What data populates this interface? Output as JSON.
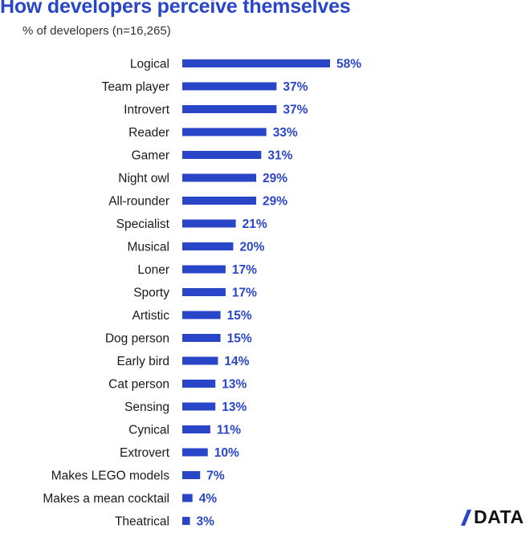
{
  "chart_data": {
    "type": "bar",
    "orientation": "horizontal",
    "title": "How developers perceive themselves",
    "subtitle": "% of developers (n=16,265)",
    "xlabel": "",
    "ylabel": "",
    "xlim": [
      0,
      58
    ],
    "categories": [
      "Logical",
      "Team player",
      "Introvert",
      "Reader",
      "Gamer",
      "Night owl",
      "All-rounder",
      "Specialist",
      "Musical",
      "Loner",
      "Sporty",
      "Artistic",
      "Dog person",
      "Early bird",
      "Cat person",
      "Sensing",
      "Cynical",
      "Extrovert",
      "Makes LEGO models",
      "Makes a mean cocktail",
      "Theatrical"
    ],
    "values": [
      58,
      37,
      37,
      33,
      31,
      29,
      29,
      21,
      20,
      17,
      17,
      15,
      15,
      14,
      13,
      13,
      11,
      10,
      7,
      4,
      3
    ],
    "value_labels": [
      "58%",
      "37%",
      "37%",
      "33%",
      "31%",
      "29%",
      "29%",
      "21%",
      "20%",
      "17%",
      "17%",
      "15%",
      "15%",
      "14%",
      "13%",
      "13%",
      "11%",
      "10%",
      "7%",
      "4%",
      "3%"
    ],
    "bar_color": "#2a46c8",
    "label_color": "#2a46c8"
  },
  "brand": {
    "logo_text": "DATA",
    "accent": "#2a46c8"
  }
}
